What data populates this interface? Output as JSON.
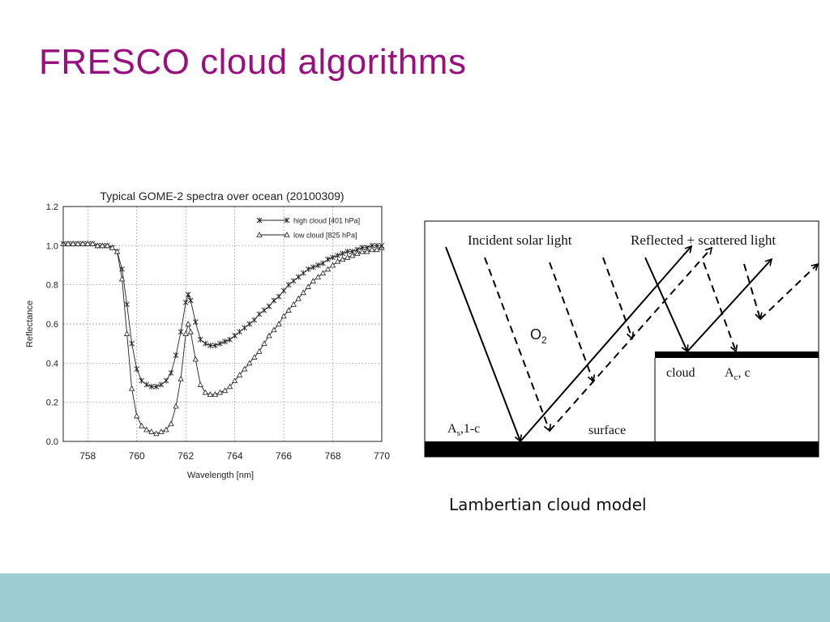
{
  "slide": {
    "title": "FRESCO cloud algorithms",
    "caption": "Lambertian cloud model",
    "footer_color": "#9dcdd3",
    "title_color": "#990f7f"
  },
  "chart_data": {
    "type": "line",
    "title": "Typical GOME-2 spectra over ocean (20100309)",
    "xlabel": "Wavelength [nm]",
    "ylabel": "Reflectance",
    "xlim": [
      757,
      770
    ],
    "ylim": [
      0,
      1.2
    ],
    "xticks": [
      "758",
      "760",
      "762",
      "764",
      "766",
      "768",
      "770"
    ],
    "yticks": [
      "0.0",
      "0.2",
      "0.4",
      "0.6",
      "0.8",
      "1.0",
      "1.2"
    ],
    "grid": true,
    "legend_position": "top-right",
    "series": [
      {
        "name": "high cloud [401 hPa]",
        "marker": "asterisk",
        "points": [
          [
            757.0,
            1.01
          ],
          [
            757.2,
            1.01
          ],
          [
            757.4,
            1.01
          ],
          [
            757.6,
            1.01
          ],
          [
            757.8,
            1.01
          ],
          [
            758.0,
            1.01
          ],
          [
            758.2,
            1.01
          ],
          [
            758.4,
            1.0
          ],
          [
            758.6,
            1.0
          ],
          [
            758.8,
            1.0
          ],
          [
            759.0,
            0.99
          ],
          [
            759.2,
            0.97
          ],
          [
            759.4,
            0.88
          ],
          [
            759.6,
            0.7
          ],
          [
            759.8,
            0.5
          ],
          [
            760.0,
            0.37
          ],
          [
            760.2,
            0.31
          ],
          [
            760.4,
            0.29
          ],
          [
            760.6,
            0.28
          ],
          [
            760.8,
            0.28
          ],
          [
            761.0,
            0.29
          ],
          [
            761.2,
            0.31
          ],
          [
            761.4,
            0.35
          ],
          [
            761.6,
            0.44
          ],
          [
            761.8,
            0.56
          ],
          [
            762.0,
            0.71
          ],
          [
            762.1,
            0.75
          ],
          [
            762.2,
            0.72
          ],
          [
            762.4,
            0.61
          ],
          [
            762.6,
            0.52
          ],
          [
            762.8,
            0.5
          ],
          [
            763.0,
            0.49
          ],
          [
            763.2,
            0.49
          ],
          [
            763.4,
            0.5
          ],
          [
            763.6,
            0.51
          ],
          [
            763.8,
            0.52
          ],
          [
            764.0,
            0.54
          ],
          [
            764.2,
            0.56
          ],
          [
            764.4,
            0.58
          ],
          [
            764.6,
            0.6
          ],
          [
            764.8,
            0.62
          ],
          [
            765.0,
            0.65
          ],
          [
            765.2,
            0.67
          ],
          [
            765.4,
            0.69
          ],
          [
            765.6,
            0.72
          ],
          [
            765.8,
            0.74
          ],
          [
            766.0,
            0.77
          ],
          [
            766.2,
            0.8
          ],
          [
            766.4,
            0.82
          ],
          [
            766.6,
            0.84
          ],
          [
            766.8,
            0.86
          ],
          [
            767.0,
            0.88
          ],
          [
            767.2,
            0.89
          ],
          [
            767.4,
            0.9
          ],
          [
            767.6,
            0.91
          ],
          [
            767.8,
            0.93
          ],
          [
            768.0,
            0.94
          ],
          [
            768.2,
            0.95
          ],
          [
            768.4,
            0.96
          ],
          [
            768.6,
            0.97
          ],
          [
            768.8,
            0.97
          ],
          [
            769.0,
            0.98
          ],
          [
            769.2,
            0.99
          ],
          [
            769.4,
            0.99
          ],
          [
            769.6,
            1.0
          ],
          [
            769.8,
            1.0
          ],
          [
            770.0,
            1.0
          ]
        ]
      },
      {
        "name": "low  cloud [825 hPa]",
        "marker": "triangle",
        "points": [
          [
            757.0,
            1.01
          ],
          [
            757.2,
            1.01
          ],
          [
            757.4,
            1.01
          ],
          [
            757.6,
            1.01
          ],
          [
            757.8,
            1.01
          ],
          [
            758.0,
            1.01
          ],
          [
            758.2,
            1.01
          ],
          [
            758.4,
            1.0
          ],
          [
            758.6,
            1.0
          ],
          [
            758.8,
            1.0
          ],
          [
            759.0,
            0.99
          ],
          [
            759.2,
            0.97
          ],
          [
            759.4,
            0.83
          ],
          [
            759.6,
            0.55
          ],
          [
            759.8,
            0.27
          ],
          [
            760.0,
            0.13
          ],
          [
            760.2,
            0.08
          ],
          [
            760.4,
            0.06
          ],
          [
            760.6,
            0.05
          ],
          [
            760.8,
            0.04
          ],
          [
            761.0,
            0.05
          ],
          [
            761.2,
            0.06
          ],
          [
            761.4,
            0.09
          ],
          [
            761.6,
            0.18
          ],
          [
            761.8,
            0.32
          ],
          [
            762.0,
            0.55
          ],
          [
            762.1,
            0.6
          ],
          [
            762.2,
            0.56
          ],
          [
            762.4,
            0.42
          ],
          [
            762.6,
            0.29
          ],
          [
            762.8,
            0.25
          ],
          [
            763.0,
            0.24
          ],
          [
            763.2,
            0.24
          ],
          [
            763.4,
            0.25
          ],
          [
            763.6,
            0.26
          ],
          [
            763.8,
            0.28
          ],
          [
            764.0,
            0.31
          ],
          [
            764.2,
            0.34
          ],
          [
            764.4,
            0.37
          ],
          [
            764.6,
            0.4
          ],
          [
            764.8,
            0.43
          ],
          [
            765.0,
            0.46
          ],
          [
            765.2,
            0.5
          ],
          [
            765.4,
            0.54
          ],
          [
            765.6,
            0.57
          ],
          [
            765.8,
            0.6
          ],
          [
            766.0,
            0.64
          ],
          [
            766.2,
            0.67
          ],
          [
            766.4,
            0.7
          ],
          [
            766.6,
            0.73
          ],
          [
            766.8,
            0.76
          ],
          [
            767.0,
            0.79
          ],
          [
            767.2,
            0.82
          ],
          [
            767.4,
            0.84
          ],
          [
            767.6,
            0.86
          ],
          [
            767.8,
            0.88
          ],
          [
            768.0,
            0.9
          ],
          [
            768.2,
            0.92
          ],
          [
            768.4,
            0.93
          ],
          [
            768.6,
            0.94
          ],
          [
            768.8,
            0.95
          ],
          [
            769.0,
            0.96
          ],
          [
            769.2,
            0.97
          ],
          [
            769.4,
            0.97
          ],
          [
            769.6,
            0.98
          ],
          [
            769.8,
            0.98
          ],
          [
            770.0,
            0.99
          ]
        ]
      }
    ]
  },
  "diagram": {
    "incident_label": "Incident solar light",
    "reflected_label": "Reflected + scattered light",
    "o2_main": "O",
    "o2_sub": "2",
    "cloud_label": "cloud",
    "cloud_albedo_main": "A",
    "cloud_albedo_sub": "c",
    "cloud_albedo_tail": ", c",
    "surface_label": "surface",
    "surface_albedo_main": "A",
    "surface_albedo_sub": "s",
    "surface_albedo_tail": ",1-c"
  }
}
